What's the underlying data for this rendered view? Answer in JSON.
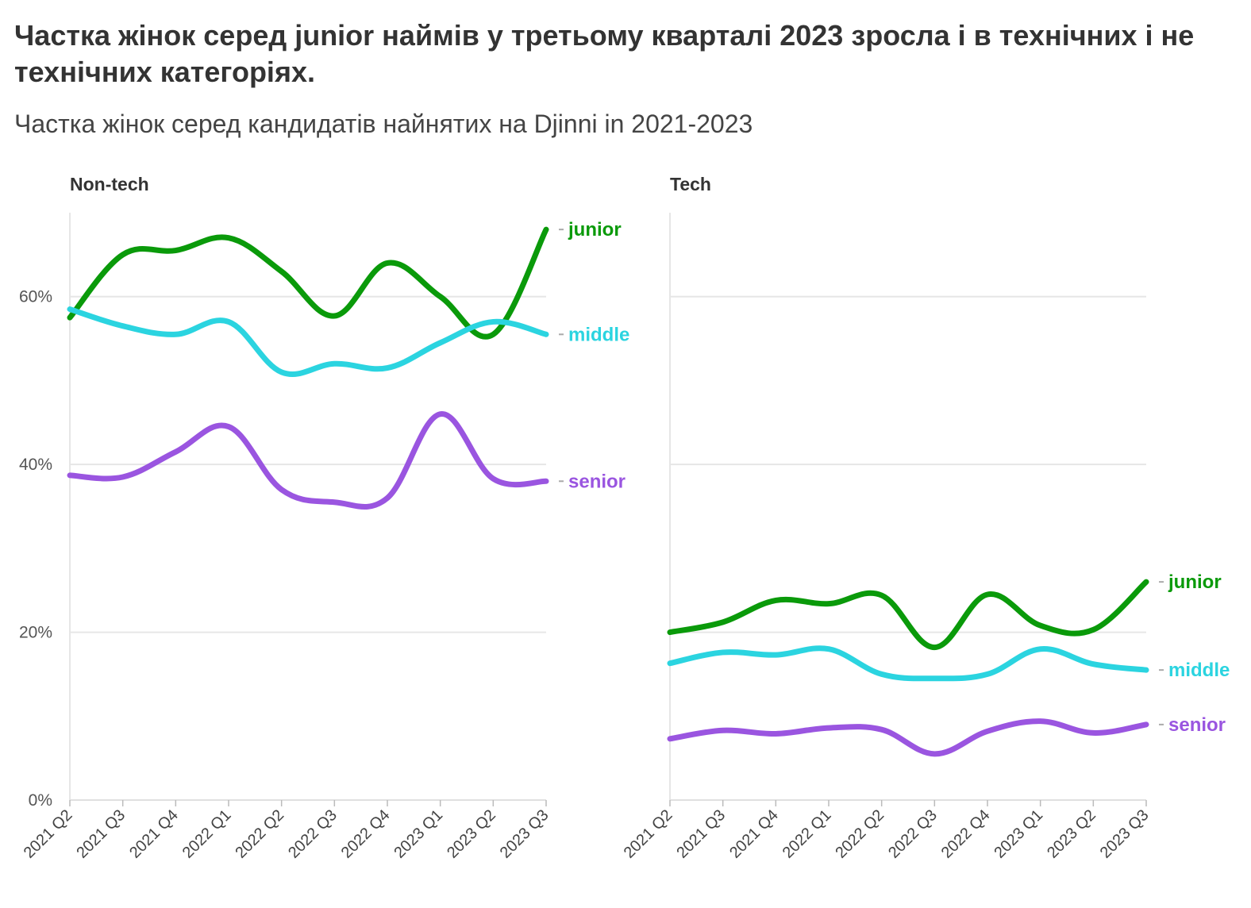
{
  "title": "Частка жінок серед junior наймів у третьому кварталі 2023 зросла і в технічних і не технічних категоріях.",
  "subtitle": "Частка жінок серед кандидатів найнятих на Djinni in 2021-2023",
  "chart_data": {
    "type": "line",
    "x": [
      "2021 Q2",
      "2021 Q3",
      "2021 Q4",
      "2022 Q1",
      "2022 Q2",
      "2022 Q3",
      "2022 Q4",
      "2023 Q1",
      "2023 Q2",
      "2023 Q3"
    ],
    "y_ticks": [
      "0%",
      "20%",
      "40%",
      "60%"
    ],
    "y_tick_values": [
      0,
      20,
      40,
      60
    ],
    "ylim": [
      0,
      70
    ],
    "grid": true,
    "colors": {
      "junior": "#0a9a0a",
      "middle": "#2bd4e0",
      "senior": "#9a55e0"
    },
    "panels": [
      {
        "name": "Non-tech",
        "series": [
          {
            "name": "junior",
            "values": [
              57.5,
              65,
              65.5,
              67,
              63,
              57.7,
              64,
              60,
              55.5,
              68
            ]
          },
          {
            "name": "middle",
            "values": [
              58.5,
              56.5,
              55.5,
              57,
              51,
              52,
              51.5,
              54.5,
              57,
              55.5
            ]
          },
          {
            "name": "senior",
            "values": [
              38.7,
              38.5,
              41.5,
              44.5,
              37,
              35.5,
              36,
              46,
              38.3,
              38
            ]
          }
        ]
      },
      {
        "name": "Tech",
        "series": [
          {
            "name": "junior",
            "values": [
              20,
              21.2,
              23.8,
              23.4,
              24.4,
              18.2,
              24.5,
              20.8,
              20.3,
              26
            ]
          },
          {
            "name": "middle",
            "values": [
              16.3,
              17.6,
              17.3,
              18,
              15,
              14.5,
              15,
              18,
              16.2,
              15.5
            ]
          },
          {
            "name": "senior",
            "values": [
              7.3,
              8.3,
              7.9,
              8.6,
              8.4,
              5.5,
              8.2,
              9.4,
              8,
              9
            ]
          }
        ]
      }
    ]
  }
}
